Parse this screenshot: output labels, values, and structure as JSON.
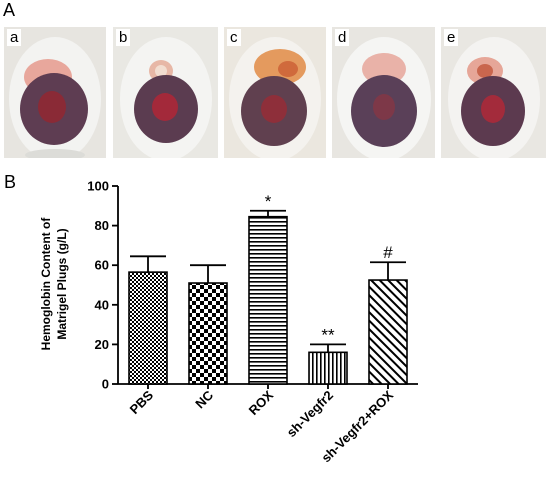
{
  "panel_a": {
    "label": "A",
    "photos": [
      {
        "label": "a"
      },
      {
        "label": "b"
      },
      {
        "label": "c"
      },
      {
        "label": "d"
      },
      {
        "label": "e"
      }
    ]
  },
  "panel_b": {
    "label": "B"
  },
  "chart_data": {
    "type": "bar",
    "title": "",
    "ylabel_line1": "Hemoglobin Content of",
    "ylabel_line2": "Matrigel Plugs (g/L)",
    "xlabel": "",
    "ylim": [
      0,
      100
    ],
    "yticks": [
      "0",
      "20",
      "40",
      "60",
      "80",
      "100"
    ],
    "categories": [
      "PBS",
      "NC",
      "ROX",
      "sh-Vegfr2",
      "sh-Vegfr2+ROX"
    ],
    "values": [
      56.5,
      51,
      84.5,
      16,
      52.5
    ],
    "errors": [
      8,
      9,
      3,
      4,
      9
    ],
    "patterns": [
      "dots",
      "checker",
      "hlines",
      "vlines",
      "diag"
    ],
    "annotations": [
      "",
      "",
      "*",
      "**",
      "#"
    ]
  }
}
